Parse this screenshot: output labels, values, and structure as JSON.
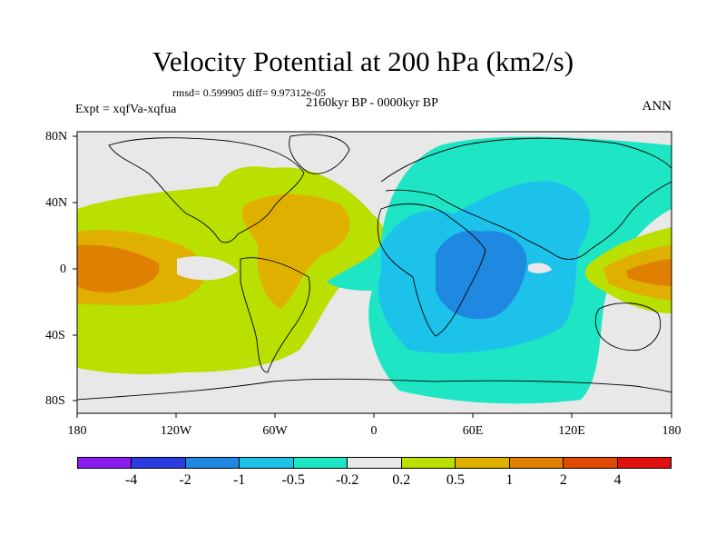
{
  "title": "Velocity Potential at 200 hPa (km2/s)",
  "stats_line": "rmsd= 0.599905 diff= 9.97312e-05",
  "period": "2160kyr BP - 0000kyr BP",
  "experiment": "Expt = xqfVa-xqfua",
  "season": "ANN",
  "lat_labels": [
    "80N",
    "40N",
    "0",
    "40S",
    "80S"
  ],
  "lon_labels": [
    "180",
    "120W",
    "60W",
    "0",
    "60E",
    "120E",
    "180"
  ],
  "colorbar": {
    "colors": [
      "#8a1cf0",
      "#2a3ce0",
      "#1f88e0",
      "#1cc2ea",
      "#1ee6c4",
      "#e8e8e8",
      "#b9e000",
      "#e0b000",
      "#e08000",
      "#e04a00",
      "#e01010"
    ],
    "labels": [
      "-4",
      "-2",
      "-1",
      "-0.5",
      "-0.2",
      "0.2",
      "0.5",
      "1",
      "2",
      "4"
    ]
  },
  "map_colors": {
    "ocean_background": "#e8e8e8",
    "coast": "#000000"
  }
}
